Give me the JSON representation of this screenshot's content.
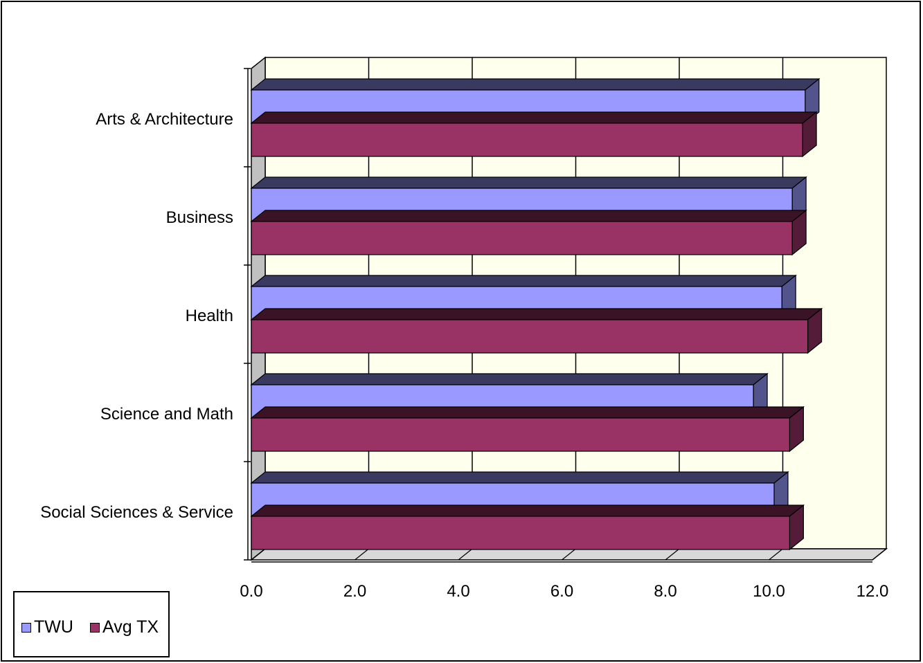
{
  "chart_data": {
    "type": "bar",
    "orientation": "horizontal",
    "style": "3d-clustered",
    "categories": [
      "Arts & Architecture",
      "Business",
      "Health",
      "Science and Math",
      "Social Sciences & Service"
    ],
    "series": [
      {
        "name": "TWU",
        "values": [
          10.7,
          10.45,
          10.25,
          9.7,
          10.1
        ],
        "color": "#9999ff"
      },
      {
        "name": "Avg TX",
        "values": [
          10.65,
          10.45,
          10.75,
          10.4,
          10.4
        ],
        "color": "#993366"
      }
    ],
    "xlim": [
      0,
      12
    ],
    "xticks": [
      "0.0",
      "2.0",
      "4.0",
      "6.0",
      "8.0",
      "10.0",
      "12.0"
    ],
    "grid": true,
    "plot_background": "#ffffee",
    "wall_side_color": "#c0c0c0",
    "legend": {
      "position": "bottom-left"
    }
  }
}
